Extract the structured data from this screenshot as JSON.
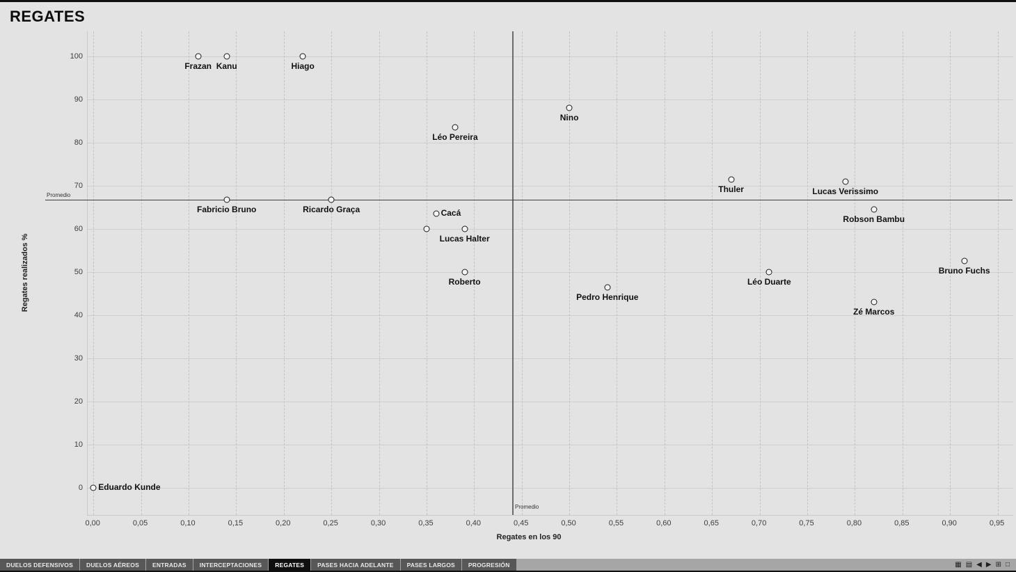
{
  "title": "REGATES",
  "colors": {
    "background": "#e3e3e3",
    "gridline": "#cecece",
    "point_stroke": "#1b1b1b",
    "ref_line": "#3d3d3d",
    "tab_bg": "#575757",
    "tab_active_bg": "#0f0f0f"
  },
  "chart_data": {
    "type": "scatter",
    "title": "REGATES",
    "xlabel": "Regates en los 90",
    "ylabel": "Regates realizados %",
    "xlim": [
      -0.006,
      0.9664
    ],
    "ylim": [
      -6.3,
      105.8
    ],
    "grid": true,
    "legend": "none",
    "x_ticks": [
      {
        "v": 0.0,
        "label": "0,00"
      },
      {
        "v": 0.05,
        "label": "0,05"
      },
      {
        "v": 0.1,
        "label": "0,10"
      },
      {
        "v": 0.15,
        "label": "0,15"
      },
      {
        "v": 0.2,
        "label": "0,20"
      },
      {
        "v": 0.25,
        "label": "0,25"
      },
      {
        "v": 0.3,
        "label": "0,30"
      },
      {
        "v": 0.35,
        "label": "0,35"
      },
      {
        "v": 0.4,
        "label": "0,40"
      },
      {
        "v": 0.45,
        "label": "0,45"
      },
      {
        "v": 0.5,
        "label": "0,50"
      },
      {
        "v": 0.55,
        "label": "0,55"
      },
      {
        "v": 0.6,
        "label": "0,60"
      },
      {
        "v": 0.65,
        "label": "0,65"
      },
      {
        "v": 0.7,
        "label": "0,70"
      },
      {
        "v": 0.75,
        "label": "0,75"
      },
      {
        "v": 0.8,
        "label": "0,80"
      },
      {
        "v": 0.85,
        "label": "0,85"
      },
      {
        "v": 0.9,
        "label": "0,90"
      },
      {
        "v": 0.95,
        "label": "0,95"
      }
    ],
    "y_ticks": [
      {
        "v": 0,
        "label": "0"
      },
      {
        "v": 10,
        "label": "10"
      },
      {
        "v": 20,
        "label": "20"
      },
      {
        "v": 30,
        "label": "30"
      },
      {
        "v": 40,
        "label": "40"
      },
      {
        "v": 50,
        "label": "50"
      },
      {
        "v": 60,
        "label": "60"
      },
      {
        "v": 70,
        "label": "70"
      },
      {
        "v": 80,
        "label": "80"
      },
      {
        "v": 90,
        "label": "90"
      },
      {
        "v": 100,
        "label": "100"
      }
    ],
    "ref_line_y": {
      "value": 66.8,
      "label": "Promedio"
    },
    "ref_line_x": {
      "value": 0.44,
      "label": "Promedio"
    },
    "points": [
      {
        "name": "Frazan",
        "x": 0.11,
        "y": 100,
        "label_pos": "below"
      },
      {
        "name": "Kanu",
        "x": 0.14,
        "y": 100,
        "label_pos": "below"
      },
      {
        "name": "Hiago",
        "x": 0.22,
        "y": 100,
        "label_pos": "below"
      },
      {
        "name": "Nino",
        "x": 0.5,
        "y": 88,
        "label_pos": "below"
      },
      {
        "name": "Léo Pereira",
        "x": 0.38,
        "y": 83.5,
        "label_pos": "below"
      },
      {
        "name": "Thuler",
        "x": 0.67,
        "y": 71.5,
        "label_pos": "below"
      },
      {
        "name": "Lucas Verissimo",
        "x": 0.79,
        "y": 71,
        "label_pos": "below"
      },
      {
        "name": "Robson Bambu",
        "x": 0.82,
        "y": 64.5,
        "label_pos": "below"
      },
      {
        "name": "Fabricio Bruno",
        "x": 0.14,
        "y": 66.8,
        "label_pos": "below"
      },
      {
        "name": "Ricardo Graça",
        "x": 0.25,
        "y": 66.8,
        "label_pos": "below"
      },
      {
        "name": "Cacá",
        "x": 0.36,
        "y": 63.5,
        "label_pos": "right"
      },
      {
        "name": "",
        "x": 0.35,
        "y": 60,
        "label_pos": "none"
      },
      {
        "name": "Lucas Halter",
        "x": 0.39,
        "y": 60,
        "label_pos": "below"
      },
      {
        "name": "Roberto",
        "x": 0.39,
        "y": 50,
        "label_pos": "below"
      },
      {
        "name": "Pedro Henrique",
        "x": 0.54,
        "y": 46.5,
        "label_pos": "below"
      },
      {
        "name": "Léo Duarte",
        "x": 0.71,
        "y": 50,
        "label_pos": "below"
      },
      {
        "name": "Bruno Fuchs",
        "x": 0.915,
        "y": 52.5,
        "label_pos": "below"
      },
      {
        "name": "Zé Marcos",
        "x": 0.82,
        "y": 43,
        "label_pos": "below"
      },
      {
        "name": "Eduardo Kunde",
        "x": 0.0,
        "y": 0,
        "label_pos": "right"
      }
    ]
  },
  "tabs": [
    {
      "label": "DUELOS DEFENSIVOS",
      "active": false
    },
    {
      "label": "DUELOS AÉREOS",
      "active": false
    },
    {
      "label": "ENTRADAS",
      "active": false
    },
    {
      "label": "INTERCEPTACIONES",
      "active": false
    },
    {
      "label": "REGATES",
      "active": true
    },
    {
      "label": "PASES HACIA ADELANTE",
      "active": false
    },
    {
      "label": "PASES LARGOS",
      "active": false
    },
    {
      "label": "PROGRESIÓN",
      "active": false
    }
  ],
  "statusbar": {
    "icons": [
      {
        "name": "grid-icon",
        "glyph": "▦"
      },
      {
        "name": "rows-icon",
        "glyph": "▤"
      },
      {
        "name": "prev-sheet-icon",
        "glyph": "◀"
      },
      {
        "name": "next-sheet-icon",
        "glyph": "▶"
      },
      {
        "name": "new-sheet-icon",
        "glyph": "⊞"
      },
      {
        "name": "fullscreen-icon",
        "glyph": "□"
      }
    ]
  }
}
